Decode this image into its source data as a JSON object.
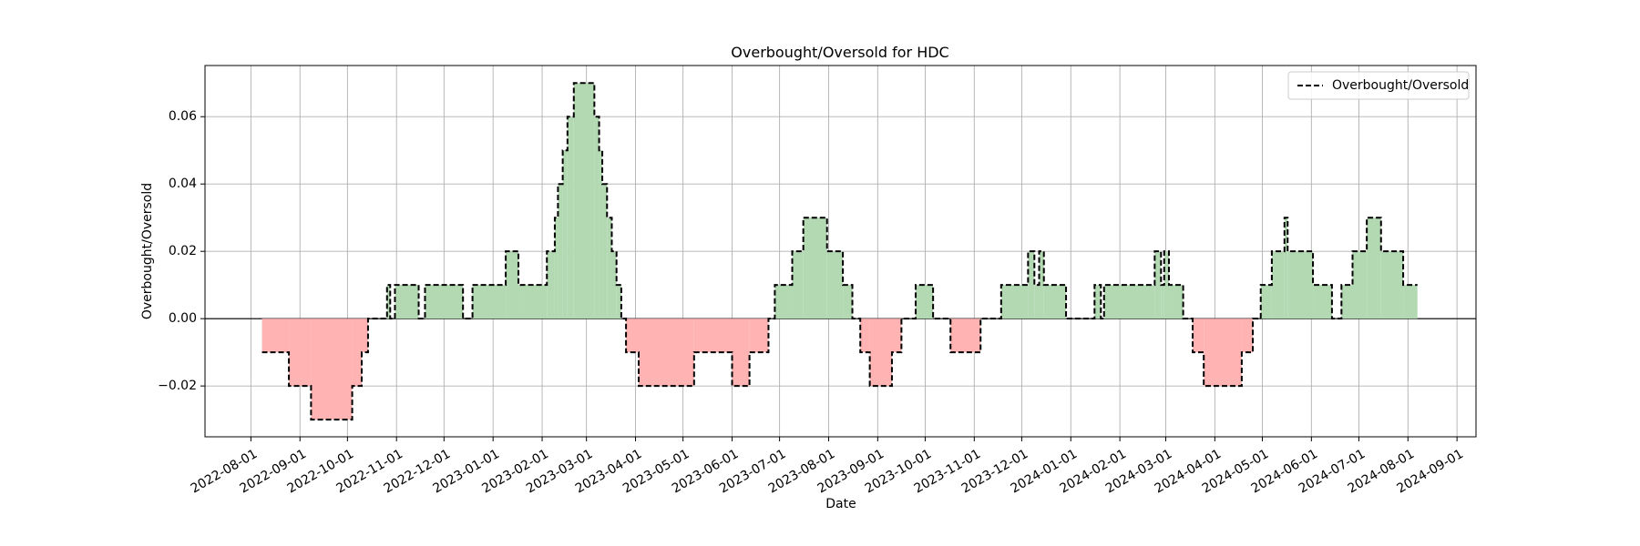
{
  "chart_data": {
    "type": "step-area",
    "title": "Overbought/Oversold for HDC",
    "xlabel": "Date",
    "ylabel": "Overbought/Oversold",
    "series": [
      {
        "name": "Overbought/Oversold",
        "color": "#000000",
        "positive_color": "#b3d9b3",
        "negative_color": "#ffb3b3",
        "x": [
          "2022-08-08",
          "2022-08-25",
          "2022-09-08",
          "2022-10-04",
          "2022-10-10",
          "2022-10-14",
          "2022-10-26",
          "2022-10-28",
          "2022-10-31",
          "2022-11-15",
          "2022-11-19",
          "2022-12-13",
          "2022-12-19",
          "2023-01-09",
          "2023-01-17",
          "2023-02-04",
          "2023-02-09",
          "2023-02-11",
          "2023-02-14",
          "2023-02-17",
          "2023-02-21",
          "2023-03-06",
          "2023-03-09",
          "2023-03-11",
          "2023-03-14",
          "2023-03-17",
          "2023-03-20",
          "2023-03-23",
          "2023-03-26",
          "2023-04-03",
          "2023-05-08",
          "2023-06-01",
          "2023-06-12",
          "2023-06-24",
          "2023-06-28",
          "2023-07-09",
          "2023-07-16",
          "2023-07-31",
          "2023-08-10",
          "2023-08-16",
          "2023-08-21",
          "2023-08-27",
          "2023-09-10",
          "2023-09-16",
          "2023-09-25",
          "2023-10-06",
          "2023-10-17",
          "2023-11-05",
          "2023-11-18",
          "2023-12-05",
          "2023-12-09",
          "2023-12-12",
          "2023-12-15",
          "2023-12-29",
          "2024-01-16",
          "2024-01-20",
          "2024-01-22",
          "2024-02-23",
          "2024-02-27",
          "2024-02-29",
          "2024-03-03",
          "2024-03-12",
          "2024-03-18",
          "2024-03-25",
          "2024-04-18",
          "2024-04-25",
          "2024-04-30",
          "2024-05-07",
          "2024-05-15",
          "2024-05-17",
          "2024-06-02",
          "2024-06-14",
          "2024-06-20",
          "2024-06-27",
          "2024-07-06",
          "2024-07-15",
          "2024-07-29",
          "2024-08-07"
        ],
        "values": [
          -0.01,
          -0.02,
          -0.03,
          -0.02,
          -0.01,
          0,
          0.01,
          0,
          0.01,
          0,
          0.01,
          0,
          0.01,
          0.02,
          0.01,
          0.02,
          0.03,
          0.04,
          0.05,
          0.06,
          0.07,
          0.06,
          0.05,
          0.04,
          0.03,
          0.02,
          0.01,
          0,
          -0.01,
          -0.02,
          -0.01,
          -0.02,
          -0.01,
          0,
          0.01,
          0.02,
          0.03,
          0.02,
          0.01,
          0,
          -0.01,
          -0.02,
          -0.01,
          0,
          0.01,
          0,
          -0.01,
          0,
          0.01,
          0.02,
          0.01,
          0.02,
          0.01,
          0,
          0.01,
          0,
          0.01,
          0.02,
          0.01,
          0.02,
          0.01,
          0,
          -0.01,
          -0.02,
          -0.01,
          0,
          0.01,
          0.02,
          0.03,
          0.02,
          0.01,
          0,
          0.01,
          0.02,
          0.03,
          0.02,
          0.01,
          0.01
        ]
      }
    ],
    "xlim": [
      "2022-07-03",
      "2024-09-13"
    ],
    "xticks": [
      "2022-08-01",
      "2022-09-01",
      "2022-10-01",
      "2022-11-01",
      "2022-12-01",
      "2023-01-01",
      "2023-02-01",
      "2023-03-01",
      "2023-04-01",
      "2023-05-01",
      "2023-06-01",
      "2023-07-01",
      "2023-08-01",
      "2023-09-01",
      "2023-10-01",
      "2023-11-01",
      "2023-12-01",
      "2024-01-01",
      "2024-02-01",
      "2024-03-01",
      "2024-04-01",
      "2024-05-01",
      "2024-06-01",
      "2024-07-01",
      "2024-08-01",
      "2024-09-01"
    ],
    "ylim": [
      -0.0351,
      0.0752
    ],
    "yticks": [
      {
        "value": -0.02,
        "label": "−0.02"
      },
      {
        "value": 0,
        "label": "0.00"
      },
      {
        "value": 0.02,
        "label": "0.02"
      },
      {
        "value": 0.04,
        "label": "0.04"
      },
      {
        "value": 0.06,
        "label": "0.06"
      }
    ],
    "grid": true,
    "legend": "upper right"
  }
}
